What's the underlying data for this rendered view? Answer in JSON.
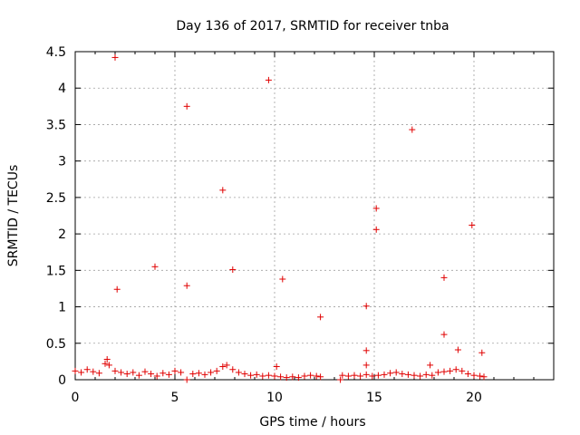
{
  "chart_data": {
    "type": "scatter",
    "title": "Day 136 of 2017, SRMTID for receiver tnba",
    "xlabel": "GPS time / hours",
    "ylabel": "SRMTID / TECUs",
    "xlim": [
      0,
      24
    ],
    "ylim": [
      0,
      4.5
    ],
    "xticks": [
      0,
      5,
      10,
      15,
      20
    ],
    "xtick_labels": [
      "0",
      "5",
      "10",
      "15",
      "20"
    ],
    "yticks": [
      0,
      0.5,
      1,
      1.5,
      2,
      2.5,
      3,
      3.5,
      4,
      4.5
    ],
    "ytick_labels": [
      "0",
      "0.5",
      "1",
      "1.5",
      "2",
      "2.5",
      "3",
      "3.5",
      "4",
      "4.5"
    ],
    "grid": true,
    "marker": "plus",
    "color": "#e00000",
    "series": [
      {
        "points": [
          {
            "x": 2.0,
            "y": 4.42
          },
          {
            "x": 9.7,
            "y": 4.11
          },
          {
            "x": 5.6,
            "y": 3.75
          },
          {
            "x": 16.9,
            "y": 3.43
          },
          {
            "x": 7.4,
            "y": 2.6
          },
          {
            "x": 15.1,
            "y": 2.35
          },
          {
            "x": 19.9,
            "y": 2.12
          },
          {
            "x": 15.1,
            "y": 2.06
          },
          {
            "x": 4.0,
            "y": 1.55
          },
          {
            "x": 7.9,
            "y": 1.51
          },
          {
            "x": 18.5,
            "y": 1.4
          },
          {
            "x": 10.4,
            "y": 1.38
          },
          {
            "x": 5.6,
            "y": 1.29
          },
          {
            "x": 2.1,
            "y": 1.24
          },
          {
            "x": 14.6,
            "y": 1.01
          },
          {
            "x": 12.3,
            "y": 0.86
          },
          {
            "x": 18.5,
            "y": 0.62
          },
          {
            "x": 19.2,
            "y": 0.41
          },
          {
            "x": 14.6,
            "y": 0.4
          },
          {
            "x": 20.4,
            "y": 0.37
          },
          {
            "x": 10.1,
            "y": 0.18
          },
          {
            "x": 14.6,
            "y": 0.2
          },
          {
            "x": 17.8,
            "y": 0.2
          },
          {
            "x": 0.0,
            "y": 0.12
          },
          {
            "x": 0.3,
            "y": 0.1
          },
          {
            "x": 0.6,
            "y": 0.14
          },
          {
            "x": 0.9,
            "y": 0.11
          },
          {
            "x": 1.2,
            "y": 0.09
          },
          {
            "x": 1.5,
            "y": 0.22
          },
          {
            "x": 1.6,
            "y": 0.28
          },
          {
            "x": 1.7,
            "y": 0.2
          },
          {
            "x": 2.0,
            "y": 0.12
          },
          {
            "x": 2.3,
            "y": 0.1
          },
          {
            "x": 2.6,
            "y": 0.08
          },
          {
            "x": 2.9,
            "y": 0.1
          },
          {
            "x": 3.2,
            "y": 0.06
          },
          {
            "x": 3.5,
            "y": 0.11
          },
          {
            "x": 3.8,
            "y": 0.08
          },
          {
            "x": 4.1,
            "y": 0.05
          },
          {
            "x": 4.4,
            "y": 0.09
          },
          {
            "x": 4.7,
            "y": 0.07
          },
          {
            "x": 5.0,
            "y": 0.12
          },
          {
            "x": 5.3,
            "y": 0.1
          },
          {
            "x": 5.6,
            "y": 0.0
          },
          {
            "x": 5.9,
            "y": 0.08
          },
          {
            "x": 6.2,
            "y": 0.09
          },
          {
            "x": 6.5,
            "y": 0.07
          },
          {
            "x": 6.8,
            "y": 0.1
          },
          {
            "x": 7.1,
            "y": 0.12
          },
          {
            "x": 7.4,
            "y": 0.18
          },
          {
            "x": 7.6,
            "y": 0.2
          },
          {
            "x": 7.9,
            "y": 0.14
          },
          {
            "x": 8.2,
            "y": 0.1
          },
          {
            "x": 8.5,
            "y": 0.08
          },
          {
            "x": 8.8,
            "y": 0.06
          },
          {
            "x": 9.1,
            "y": 0.07
          },
          {
            "x": 9.4,
            "y": 0.05
          },
          {
            "x": 9.7,
            "y": 0.06
          },
          {
            "x": 10.0,
            "y": 0.05
          },
          {
            "x": 10.3,
            "y": 0.04
          },
          {
            "x": 10.6,
            "y": 0.03
          },
          {
            "x": 10.9,
            "y": 0.04
          },
          {
            "x": 11.2,
            "y": 0.03
          },
          {
            "x": 11.5,
            "y": 0.05
          },
          {
            "x": 11.8,
            "y": 0.06
          },
          {
            "x": 12.1,
            "y": 0.05
          },
          {
            "x": 12.3,
            "y": 0.04
          },
          {
            "x": 13.3,
            "y": 0.0
          },
          {
            "x": 13.4,
            "y": 0.06
          },
          {
            "x": 13.7,
            "y": 0.05
          },
          {
            "x": 14.0,
            "y": 0.06
          },
          {
            "x": 14.3,
            "y": 0.05
          },
          {
            "x": 14.6,
            "y": 0.07
          },
          {
            "x": 14.9,
            "y": 0.05
          },
          {
            "x": 15.2,
            "y": 0.06
          },
          {
            "x": 15.5,
            "y": 0.07
          },
          {
            "x": 15.8,
            "y": 0.09
          },
          {
            "x": 16.1,
            "y": 0.1
          },
          {
            "x": 16.4,
            "y": 0.08
          },
          {
            "x": 16.7,
            "y": 0.07
          },
          {
            "x": 17.0,
            "y": 0.06
          },
          {
            "x": 17.3,
            "y": 0.05
          },
          {
            "x": 17.6,
            "y": 0.07
          },
          {
            "x": 17.9,
            "y": 0.06
          },
          {
            "x": 18.2,
            "y": 0.1
          },
          {
            "x": 18.5,
            "y": 0.11
          },
          {
            "x": 18.8,
            "y": 0.12
          },
          {
            "x": 19.1,
            "y": 0.14
          },
          {
            "x": 19.4,
            "y": 0.12
          },
          {
            "x": 19.7,
            "y": 0.08
          },
          {
            "x": 20.0,
            "y": 0.06
          },
          {
            "x": 20.3,
            "y": 0.05
          },
          {
            "x": 20.5,
            "y": 0.04
          }
        ]
      }
    ]
  }
}
